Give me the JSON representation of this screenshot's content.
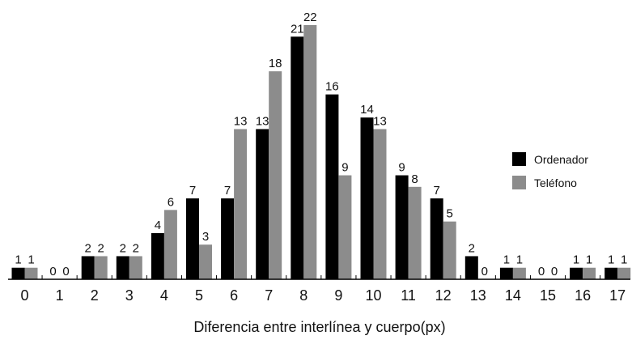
{
  "chart_data": {
    "type": "bar",
    "title": "",
    "xlabel": "Diferencia entre interlínea y cuerpo(px)",
    "ylabel": "",
    "categories": [
      "0",
      "1",
      "2",
      "3",
      "4",
      "5",
      "6",
      "7",
      "8",
      "9",
      "10",
      "11",
      "12",
      "13",
      "14",
      "15",
      "16",
      "17"
    ],
    "series": [
      {
        "name": "Ordenador",
        "color": "#000000",
        "values": [
          1,
          0,
          2,
          2,
          4,
          7,
          7,
          13,
          21,
          16,
          14,
          9,
          7,
          2,
          1,
          0,
          1,
          1
        ]
      },
      {
        "name": "Teléfono",
        "color": "#8c8c8c",
        "values": [
          1,
          0,
          2,
          2,
          6,
          3,
          13,
          18,
          22,
          9,
          13,
          8,
          5,
          0,
          1,
          0,
          1,
          1
        ]
      }
    ],
    "ylim": [
      0,
      22
    ],
    "grid": false,
    "legend_position": "right"
  }
}
